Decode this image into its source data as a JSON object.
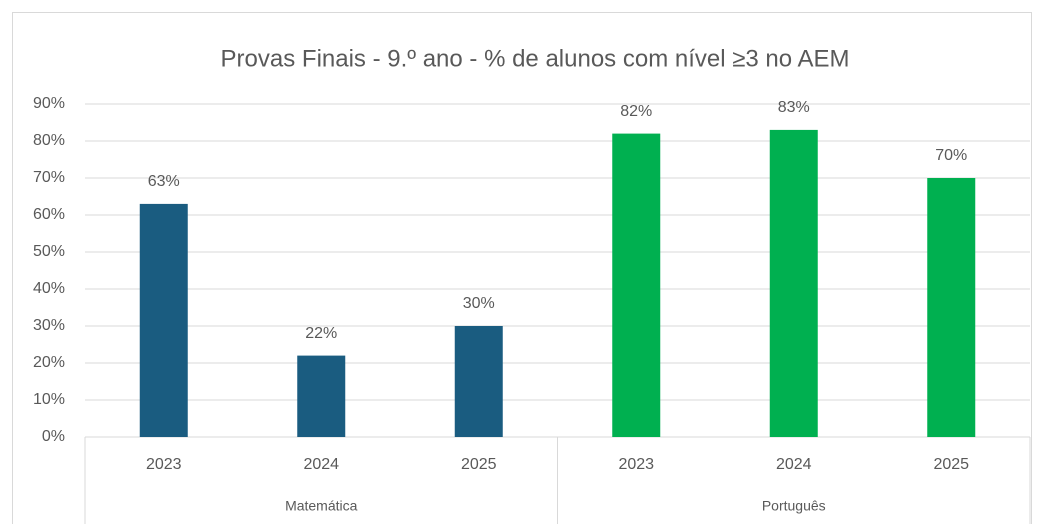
{
  "chart_data": {
    "type": "bar",
    "title": "Provas Finais - 9.º ano - % de alunos com nível ≥3 no AEM",
    "groups": [
      {
        "name": "Matemática",
        "categories": [
          "2023",
          "2024",
          "2025"
        ],
        "values": [
          63,
          22,
          30
        ],
        "value_labels": [
          "63%",
          "22%",
          "30%"
        ],
        "color": "#1a5c80"
      },
      {
        "name": "Português",
        "categories": [
          "2023",
          "2024",
          "2025"
        ],
        "values": [
          82,
          83,
          70
        ],
        "value_labels": [
          "82%",
          "83%",
          "70%"
        ],
        "color": "#00b050"
      }
    ],
    "ylim": [
      0,
      90
    ],
    "yticks": [
      {
        "value": 0,
        "label": "0%"
      },
      {
        "value": 10,
        "label": "10%"
      },
      {
        "value": 20,
        "label": "20%"
      },
      {
        "value": 30,
        "label": "30%"
      },
      {
        "value": 40,
        "label": "40%"
      },
      {
        "value": 50,
        "label": "50%"
      },
      {
        "value": 60,
        "label": "60%"
      },
      {
        "value": 70,
        "label": "70%"
      },
      {
        "value": 80,
        "label": "80%"
      },
      {
        "value": 90,
        "label": "90%"
      }
    ],
    "grid": true
  }
}
